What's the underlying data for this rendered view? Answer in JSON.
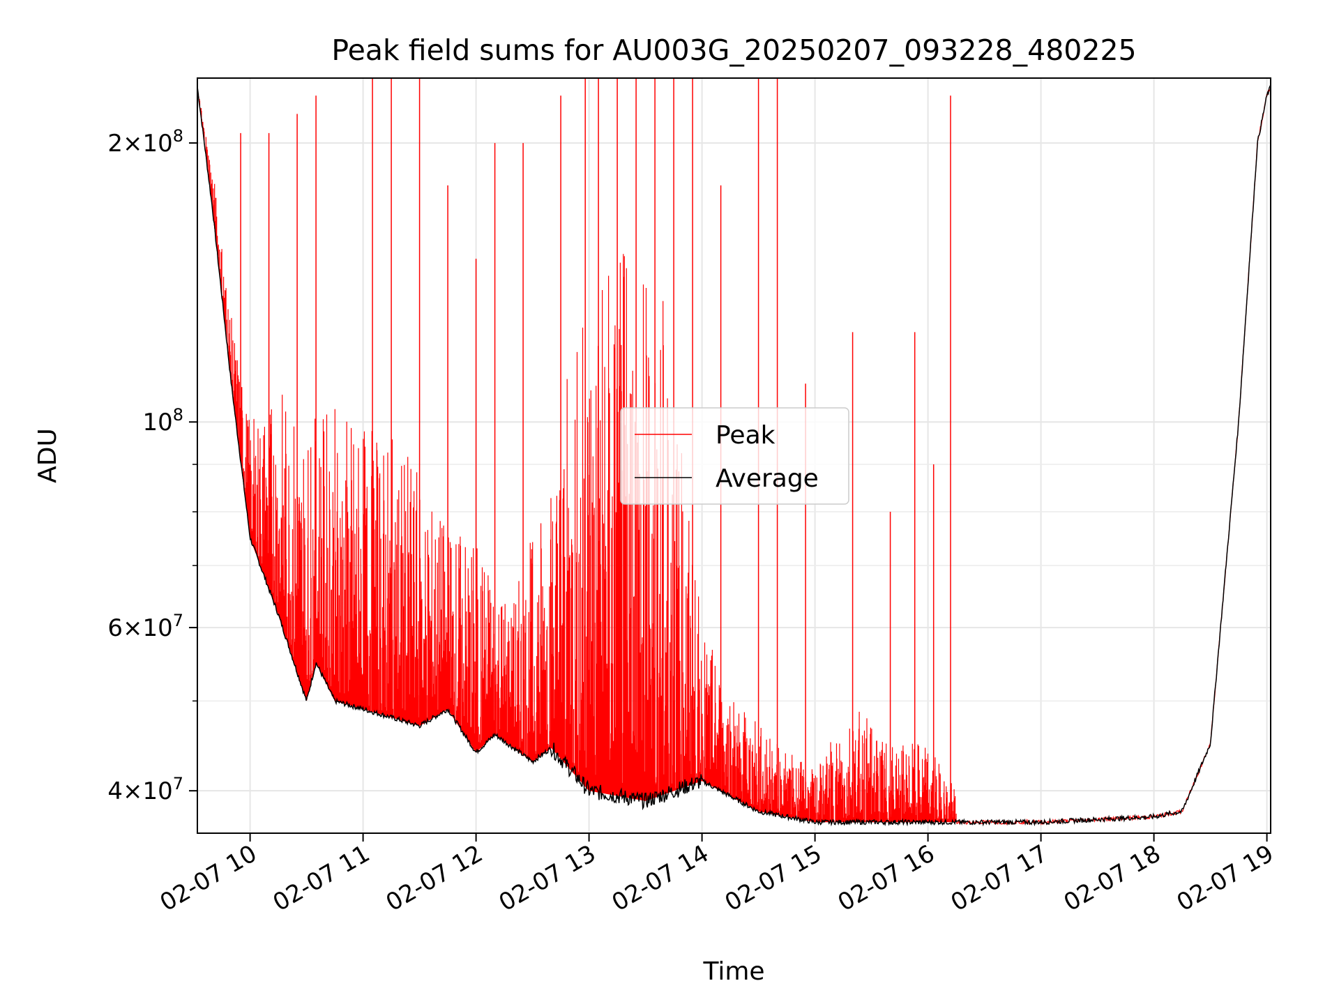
{
  "chart_data": {
    "type": "line",
    "title": "Peak field sums for AU003G_20250207_093228_480225",
    "xlabel": "Time",
    "ylabel": "ADU",
    "yscale": "log",
    "grid": true,
    "legend_position": "center",
    "xlim": [
      "2025-02-07 09:32",
      "2025-02-07 19:02"
    ],
    "ylim": [
      36000000,
      235000000
    ],
    "x_ticks": [
      "2025-02-07 10:00",
      "2025-02-07 11:00",
      "2025-02-07 12:00",
      "2025-02-07 13:00",
      "2025-02-07 14:00",
      "2025-02-07 15:00",
      "2025-02-07 16:00",
      "2025-02-07 17:00",
      "2025-02-07 18:00",
      "2025-02-07 19:00"
    ],
    "x_tick_labels": [
      "02-07 10",
      "02-07 11",
      "02-07 12",
      "02-07 13",
      "02-07 14",
      "02-07 15",
      "02-07 16",
      "02-07 17",
      "02-07 18",
      "02-07 19"
    ],
    "y_ticks": [
      {
        "value": 40000000,
        "mantissa": "4",
        "exp": "7"
      },
      {
        "value": 60000000,
        "mantissa": "6",
        "exp": "7"
      },
      {
        "value": 100000000,
        "mantissa": "",
        "exp": "8"
      },
      {
        "value": 200000000,
        "mantissa": "2",
        "exp": "8"
      }
    ],
    "y_minor_ticks": [
      50000000,
      70000000,
      80000000,
      90000000
    ],
    "series": [
      {
        "name": "Peak",
        "color": "#ff0000",
        "x": [
          "2025-02-07 09:32",
          "2025-02-07 09:40",
          "2025-02-07 09:50",
          "2025-02-07 10:00",
          "2025-02-07 10:15",
          "2025-02-07 10:30",
          "2025-02-07 10:45",
          "2025-02-07 11:00",
          "2025-02-07 11:20",
          "2025-02-07 11:40",
          "2025-02-07 12:00",
          "2025-02-07 12:20",
          "2025-02-07 12:40",
          "2025-02-07 13:00",
          "2025-02-07 13:20",
          "2025-02-07 13:40",
          "2025-02-07 14:00",
          "2025-02-07 14:20",
          "2025-02-07 14:40",
          "2025-02-07 15:00",
          "2025-02-07 15:20",
          "2025-02-07 15:40",
          "2025-02-07 16:00",
          "2025-02-07 16:15"
        ],
        "y": [
          230000000,
          190000000,
          130000000,
          100000000,
          110000000,
          100000000,
          105000000,
          100000000,
          95000000,
          80000000,
          75000000,
          65000000,
          90000000,
          150000000,
          160000000,
          140000000,
          60000000,
          50000000,
          45000000,
          42000000,
          50000000,
          45000000,
          45000000,
          40000000
        ],
        "spikes": [
          {
            "x": "2025-02-07 09:55",
            "y": 205000000
          },
          {
            "x": "2025-02-07 10:10",
            "y": 205000000
          },
          {
            "x": "2025-02-07 10:25",
            "y": 215000000
          },
          {
            "x": "2025-02-07 10:35",
            "y": 225000000
          },
          {
            "x": "2025-02-07 11:05",
            "y": 235000000
          },
          {
            "x": "2025-02-07 11:15",
            "y": 235000000
          },
          {
            "x": "2025-02-07 11:30",
            "y": 235000000
          },
          {
            "x": "2025-02-07 11:45",
            "y": 180000000
          },
          {
            "x": "2025-02-07 12:00",
            "y": 150000000
          },
          {
            "x": "2025-02-07 12:10",
            "y": 200000000
          },
          {
            "x": "2025-02-07 12:25",
            "y": 200000000
          },
          {
            "x": "2025-02-07 12:45",
            "y": 225000000
          },
          {
            "x": "2025-02-07 12:58",
            "y": 235000000
          },
          {
            "x": "2025-02-07 13:05",
            "y": 235000000
          },
          {
            "x": "2025-02-07 13:15",
            "y": 235000000
          },
          {
            "x": "2025-02-07 13:25",
            "y": 235000000
          },
          {
            "x": "2025-02-07 13:35",
            "y": 235000000
          },
          {
            "x": "2025-02-07 13:45",
            "y": 235000000
          },
          {
            "x": "2025-02-07 13:55",
            "y": 235000000
          },
          {
            "x": "2025-02-07 14:10",
            "y": 180000000
          },
          {
            "x": "2025-02-07 14:30",
            "y": 235000000
          },
          {
            "x": "2025-02-07 14:40",
            "y": 235000000
          },
          {
            "x": "2025-02-07 14:55",
            "y": 110000000
          },
          {
            "x": "2025-02-07 15:20",
            "y": 125000000
          },
          {
            "x": "2025-02-07 15:40",
            "y": 80000000
          },
          {
            "x": "2025-02-07 15:53",
            "y": 125000000
          },
          {
            "x": "2025-02-07 16:03",
            "y": 90000000
          },
          {
            "x": "2025-02-07 16:12",
            "y": 225000000
          }
        ]
      },
      {
        "name": "Average",
        "color": "#000000",
        "x": [
          "2025-02-07 09:32",
          "2025-02-07 09:40",
          "2025-02-07 09:50",
          "2025-02-07 10:00",
          "2025-02-07 10:15",
          "2025-02-07 10:30",
          "2025-02-07 10:35",
          "2025-02-07 10:45",
          "2025-02-07 11:00",
          "2025-02-07 11:15",
          "2025-02-07 11:30",
          "2025-02-07 11:45",
          "2025-02-07 12:00",
          "2025-02-07 12:10",
          "2025-02-07 12:30",
          "2025-02-07 12:40",
          "2025-02-07 13:00",
          "2025-02-07 13:30",
          "2025-02-07 14:00",
          "2025-02-07 14:30",
          "2025-02-07 15:00",
          "2025-02-07 16:00",
          "2025-02-07 17:00",
          "2025-02-07 18:00",
          "2025-02-07 18:15",
          "2025-02-07 18:30",
          "2025-02-07 18:45",
          "2025-02-07 18:55",
          "2025-02-07 19:00",
          "2025-02-07 19:02"
        ],
        "y": [
          230000000,
          170000000,
          110000000,
          75000000,
          62000000,
          50000000,
          55000000,
          50000000,
          49000000,
          48000000,
          47000000,
          49000000,
          44000000,
          46000000,
          43000000,
          44500000,
          40000000,
          39000000,
          41000000,
          38000000,
          37000000,
          37000000,
          37000000,
          37500000,
          38000000,
          45000000,
          100000000,
          200000000,
          225000000,
          230000000
        ]
      }
    ]
  }
}
